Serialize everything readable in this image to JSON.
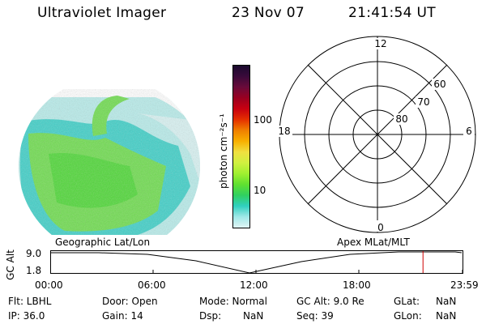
{
  "header": {
    "instrument": "Ultraviolet Imager",
    "date": "23 Nov 07",
    "time": "21:41:54 UT"
  },
  "colorbar": {
    "label": "photon cm⁻²s⁻¹",
    "ticks": [
      "100",
      "10"
    ],
    "colors": [
      "#1a0a2e",
      "#3a0a3a",
      "#6a0a3a",
      "#9a0020",
      "#c80010",
      "#e43000",
      "#f08000",
      "#f8b000",
      "#f0e040",
      "#d0f040",
      "#a0f030",
      "#60e030",
      "#30d060",
      "#30d0c0",
      "#a0e8e8",
      "#e0f4f4"
    ]
  },
  "polar": {
    "top_label": "12",
    "bottom_label": "0",
    "left_label": "18",
    "right_label": "6",
    "ring_labels": [
      "60",
      "70",
      "80"
    ]
  },
  "timeline": {
    "ylabel": "GC Alt",
    "y_top": "9.0",
    "y_bottom": "1.8",
    "left_title": "Geographic Lat/Lon",
    "right_title": "Apex  MLat/MLT",
    "x_ticks": [
      "00:00",
      "06:00",
      "12:00",
      "18:00",
      "23:59"
    ],
    "marker_time_hours": 21.7
  },
  "info": {
    "filter": "Flt: LBHL",
    "ip": "IP: 36.0",
    "door": "Door: Open",
    "gain": "Gain: 14",
    "mode": "Mode: Normal",
    "dsp_label": "Dsp:",
    "dsp_value": "NaN",
    "gc_alt": "GC Alt: 9.0 Re",
    "seq": "Seq: 39",
    "glat_label": "GLat:",
    "glat_value": "NaN",
    "glon_label": "GLon:",
    "glon_value": "NaN"
  }
}
